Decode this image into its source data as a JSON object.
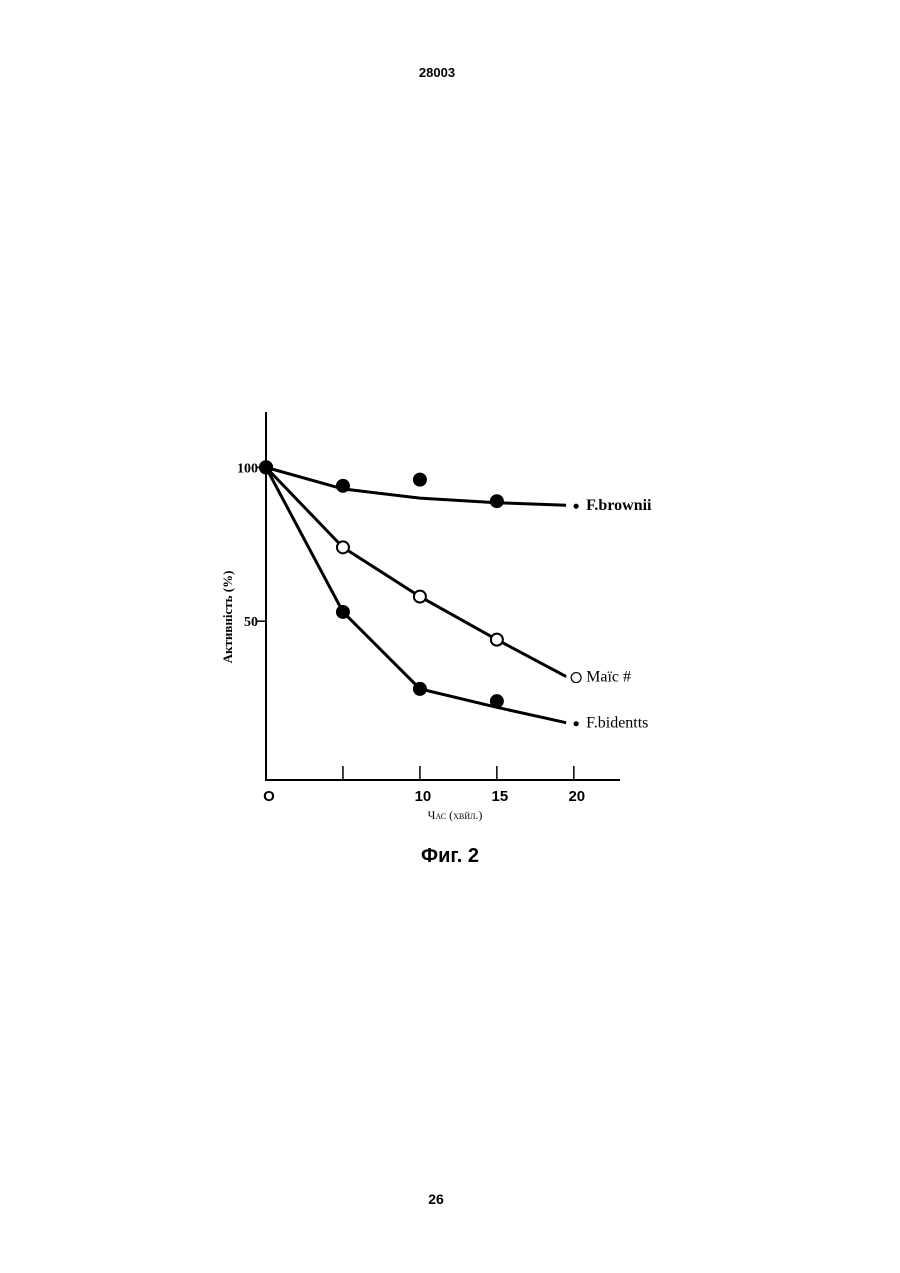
{
  "header": {
    "number": "28003"
  },
  "chart_data": {
    "type": "scatter",
    "ylabel": "Активність (%)",
    "xlabel": "Час (хвйл.)",
    "x": [
      0,
      5,
      10,
      15
    ],
    "series": [
      {
        "name": "F.brownii",
        "color": "#000000",
        "marker": "filled",
        "values": [
          100,
          94,
          96,
          89
        ],
        "fit": [
          100,
          93,
          90,
          88.5,
          87.7
        ]
      },
      {
        "name": "Маїс #",
        "color": "#000000",
        "marker": "open",
        "values": [
          100,
          74,
          58,
          44
        ],
        "fit": [
          100,
          74,
          58,
          44,
          32
        ]
      },
      {
        "name": "F.bidentts",
        "color": "#000000",
        "marker": "filled",
        "values": [
          100,
          53,
          28,
          24
        ],
        "fit": [
          100,
          53,
          28,
          22,
          17
        ]
      }
    ],
    "fit_x": [
      0,
      5,
      10,
      15,
      19.5
    ],
    "xlim": [
      0,
      23
    ],
    "ylim": [
      0,
      118
    ],
    "xticks": [
      {
        "value": 0,
        "label": "O"
      },
      10,
      15,
      20
    ],
    "unlabeled_xticks": [
      5
    ],
    "yticks": [
      50,
      100
    ]
  },
  "caption": "Фиг. 2",
  "footer": {
    "page": "26"
  }
}
